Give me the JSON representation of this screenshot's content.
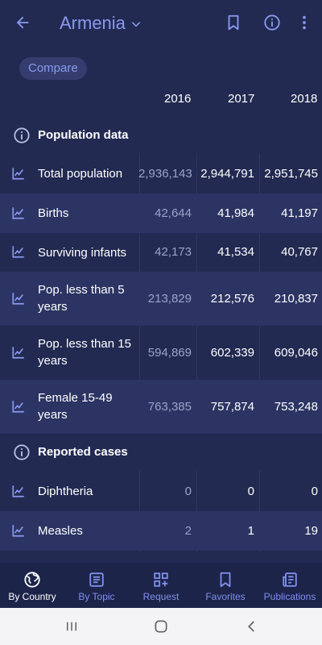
{
  "header": {
    "country": "Armenia"
  },
  "compare_label": "Compare",
  "years": [
    "2016",
    "2017",
    "2018"
  ],
  "sections": [
    {
      "title": "Population data",
      "rows": [
        {
          "label": "Total population",
          "values": [
            "2,936,143",
            "2,944,791",
            "2,951,745"
          ]
        },
        {
          "label": "Births",
          "values": [
            "42,644",
            "41,984",
            "41,197"
          ]
        },
        {
          "label": "Surviving infants",
          "values": [
            "42,173",
            "41,534",
            "40,767"
          ]
        },
        {
          "label": "Pop. less than 5 years",
          "values": [
            "213,829",
            "212,576",
            "210,837"
          ]
        },
        {
          "label": "Pop. less than 15 years",
          "values": [
            "594,869",
            "602,339",
            "609,046"
          ]
        },
        {
          "label": "Female 15-49 years",
          "values": [
            "763,385",
            "757,874",
            "753,248"
          ]
        }
      ]
    },
    {
      "title": "Reported cases",
      "rows": [
        {
          "label": "Diphtheria",
          "values": [
            "0",
            "0",
            "0"
          ]
        },
        {
          "label": "Measles",
          "values": [
            "2",
            "1",
            "19"
          ]
        }
      ]
    }
  ],
  "bottom_nav": [
    {
      "label": "By Country",
      "icon": "globe-icon",
      "active": true
    },
    {
      "label": "By Topic",
      "icon": "article-icon"
    },
    {
      "label": "Request",
      "icon": "grid-add-icon"
    },
    {
      "label": "Favorites",
      "icon": "bookmark-icon"
    },
    {
      "label": "Publications",
      "icon": "newspaper-icon"
    }
  ],
  "colors": {
    "background": "#222a52",
    "alt_row": "#2b3463",
    "accent": "#8a9af0",
    "bottom_nav": "#1d2449"
  }
}
